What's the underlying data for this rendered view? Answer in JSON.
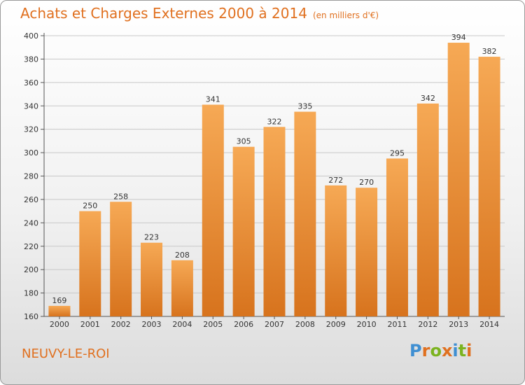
{
  "title": "Achats et Charges Externes 2000 à 2014",
  "subtitle": "(en milliers d'€)",
  "place_name": "NEUVY-LE-ROI",
  "brand": "Proxiti",
  "colors": {
    "title": "#e0701f",
    "bar_light": "#f6a955",
    "bar_dark": "#d7731d",
    "brand_letters": [
      "#3f8fd2",
      "#e0701f",
      "#7bb31f",
      "#e0701f",
      "#3f8fd2",
      "#7bb31f",
      "#e0701f"
    ]
  },
  "chart_data": {
    "type": "bar",
    "title": "Achats et Charges Externes 2000 à 2014",
    "subtitle": "(en milliers d'€)",
    "xlabel": "",
    "ylabel": "",
    "categories": [
      "2000",
      "2001",
      "2002",
      "2003",
      "2004",
      "2005",
      "2006",
      "2007",
      "2008",
      "2009",
      "2010",
      "2011",
      "2012",
      "2013",
      "2014"
    ],
    "values": [
      169,
      250,
      258,
      223,
      208,
      341,
      305,
      322,
      335,
      272,
      270,
      295,
      342,
      394,
      382
    ],
    "ylim": [
      160,
      400
    ],
    "yticks": [
      160,
      180,
      200,
      220,
      240,
      260,
      280,
      300,
      320,
      340,
      360,
      380,
      400
    ],
    "grid": true,
    "legend": "none",
    "data_labels": true
  }
}
